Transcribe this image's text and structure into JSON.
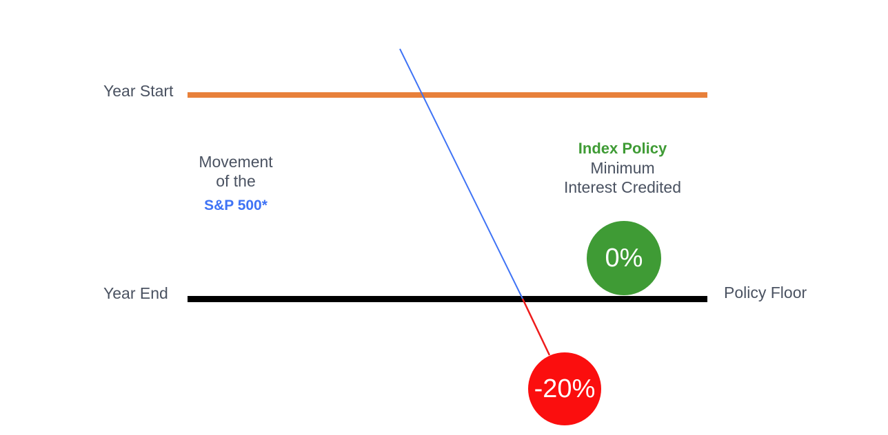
{
  "labels": {
    "year_start": "Year Start",
    "year_end": "Year End",
    "policy_floor": "Policy Floor"
  },
  "sp_block": {
    "line1": "Movement",
    "line2": "of the",
    "index_name": "S&P 500*"
  },
  "policy_block": {
    "title": "Index Policy",
    "line1": "Minimum",
    "line2": "Interest Credited"
  },
  "badges": {
    "floor_value": "0%",
    "market_value": "-20%"
  },
  "colors": {
    "year_start_line": "#e8803a",
    "year_end_line": "#000000",
    "sp_line": "#3f73f5",
    "loss_line": "#ee1c1c",
    "floor_badge": "#3f9b35",
    "loss_badge": "#fb0e0e",
    "policy_title": "#3f9b35",
    "index_name": "#3f73f5"
  }
}
